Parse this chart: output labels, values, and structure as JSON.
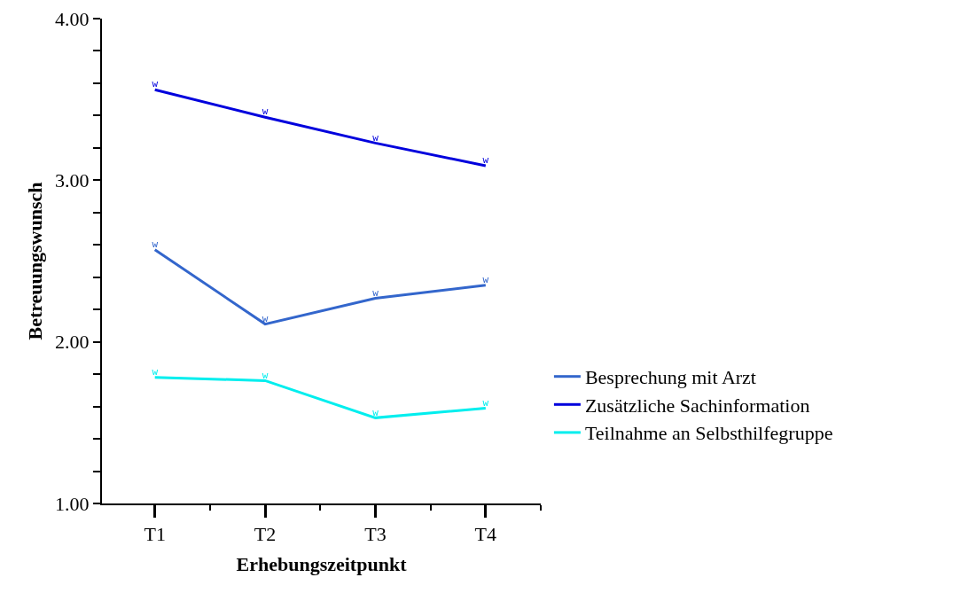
{
  "chart_data": {
    "type": "line",
    "xlabel": "Erhebungszeitpunkt",
    "ylabel": "Betreuungswunsch",
    "categories": [
      "T1",
      "T2",
      "T3",
      "T4"
    ],
    "series": [
      {
        "name": "Besprechung mit Arzt",
        "color": "#3366cc",
        "values": [
          2.57,
          2.11,
          2.27,
          2.35
        ],
        "value_labels": [
          "w",
          "w",
          "w",
          "w"
        ]
      },
      {
        "name": "Zusätzliche Sachinformation",
        "color": "#0000dd",
        "values": [
          3.56,
          3.39,
          3.23,
          3.09
        ],
        "value_labels": [
          "w",
          "w",
          "w",
          "w"
        ]
      },
      {
        "name": "Teilnahme an Selbsthilfegruppe",
        "color": "#00eeee",
        "values": [
          1.78,
          1.76,
          1.53,
          1.59
        ],
        "value_labels": [
          "w",
          "w",
          "w",
          "w"
        ]
      }
    ],
    "ylim": [
      1,
      4
    ],
    "yticks": [
      {
        "value": 1,
        "label": "1.00"
      },
      {
        "value": 1.2,
        "label": null
      },
      {
        "value": 1.4,
        "label": null
      },
      {
        "value": 1.6,
        "label": null
      },
      {
        "value": 1.8,
        "label": null
      },
      {
        "value": 2,
        "label": "2.00"
      },
      {
        "value": 2.2,
        "label": null
      },
      {
        "value": 2.4,
        "label": null
      },
      {
        "value": 2.6,
        "label": null
      },
      {
        "value": 2.8,
        "label": null
      },
      {
        "value": 3,
        "label": "3.00"
      },
      {
        "value": 3.2,
        "label": null
      },
      {
        "value": 3.4,
        "label": null
      },
      {
        "value": 3.6,
        "label": null
      },
      {
        "value": 3.8,
        "label": null
      },
      {
        "value": 4,
        "label": "4.00"
      }
    ],
    "grid": false,
    "legend": "bottom right",
    "marker": "none",
    "line_style": "solid"
  }
}
